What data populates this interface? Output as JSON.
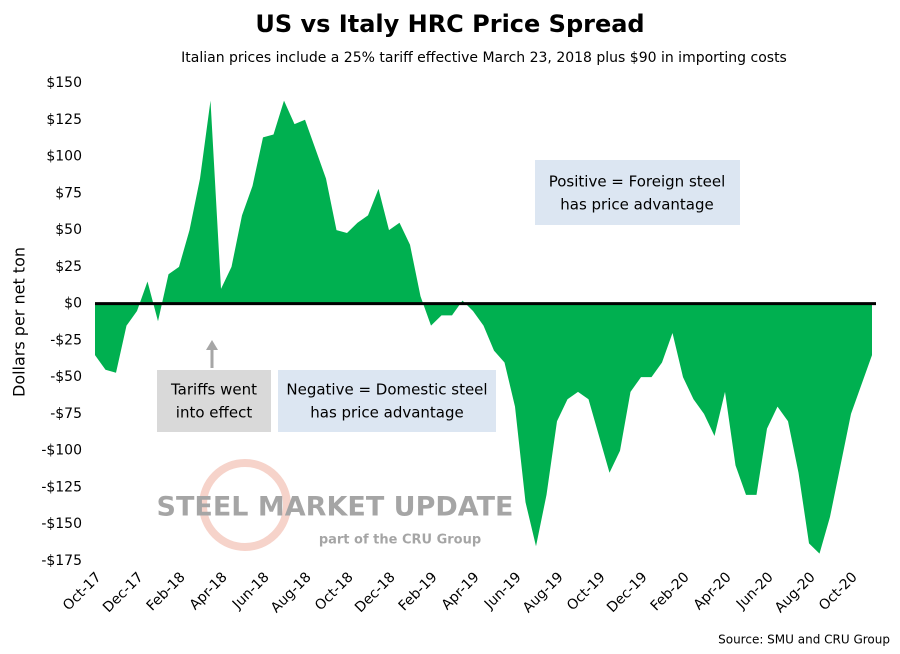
{
  "chart_data": {
    "type": "area",
    "title": "US vs Italy HRC Price Spread",
    "subtitle": "Italian prices include a 25% tariff effective March 23, 2018 plus $90 in importing costs",
    "ylabel": "Dollars per net ton",
    "source": "Source: SMU and CRU Group",
    "watermark": [
      "STEEL MARKET UPDATE",
      "part of the CRU Group"
    ],
    "annotations": [
      [
        "Positive = Foreign steel",
        "has price advantage"
      ],
      [
        "Tariffs went",
        "into effect"
      ],
      [
        "Negative = Domestic steel",
        "has price advantage"
      ]
    ],
    "color": "#00b050",
    "categories": [
      "Oct-17",
      null,
      null,
      null,
      "Dec-17",
      null,
      null,
      null,
      "Feb-18",
      null,
      null,
      null,
      "Apr-18",
      null,
      null,
      null,
      "Jun-18",
      null,
      null,
      null,
      "Aug-18",
      null,
      null,
      null,
      "Oct-18",
      null,
      null,
      null,
      "Dec-18",
      null,
      null,
      null,
      "Feb-19",
      null,
      null,
      null,
      "Apr-19",
      null,
      null,
      null,
      "Jun-19",
      null,
      null,
      null,
      "Aug-19",
      null,
      null,
      null,
      "Oct-19",
      null,
      null,
      null,
      "Dec-19",
      null,
      null,
      null,
      "Feb-20",
      null,
      null,
      null,
      "Apr-20",
      null,
      null,
      null,
      "Jun-20",
      null,
      null,
      null,
      "Aug-20",
      null,
      null,
      null,
      "Oct-20",
      null,
      null
    ],
    "values": [
      -35,
      -45,
      -47,
      -15,
      -5,
      15,
      -12,
      20,
      25,
      50,
      85,
      138,
      10,
      25,
      60,
      80,
      113,
      115,
      138,
      122,
      125,
      105,
      85,
      50,
      48,
      55,
      60,
      78,
      50,
      55,
      40,
      5,
      -15,
      -8,
      -8,
      2,
      -5,
      -15,
      -32,
      -40,
      -70,
      -135,
      -165,
      -130,
      -80,
      -65,
      -60,
      -65,
      -90,
      -115,
      -100,
      -60,
      -50,
      -50,
      -40,
      -20,
      -50,
      -65,
      -75,
      -90,
      -60,
      -110,
      -130,
      -130,
      -85,
      -70,
      -80,
      -115,
      -163,
      -170,
      -145,
      -110,
      -75,
      -55,
      -35
    ],
    "ylim": [
      -175,
      150
    ],
    "yticks": [
      {
        "value": 150,
        "label": "$150"
      },
      {
        "value": 125,
        "label": "$125"
      },
      {
        "value": 100,
        "label": "$100"
      },
      {
        "value": 75,
        "label": "$75"
      },
      {
        "value": 50,
        "label": "$50"
      },
      {
        "value": 25,
        "label": "$25"
      },
      {
        "value": 0,
        "label": "$0"
      },
      {
        "value": -25,
        "label": "-$25"
      },
      {
        "value": -50,
        "label": "-$50"
      },
      {
        "value": -75,
        "label": "-$75"
      },
      {
        "value": -100,
        "label": "-$100"
      },
      {
        "value": -125,
        "label": "-$125"
      },
      {
        "value": -150,
        "label": "-$150"
      },
      {
        "value": -175,
        "label": "-$175"
      }
    ]
  }
}
